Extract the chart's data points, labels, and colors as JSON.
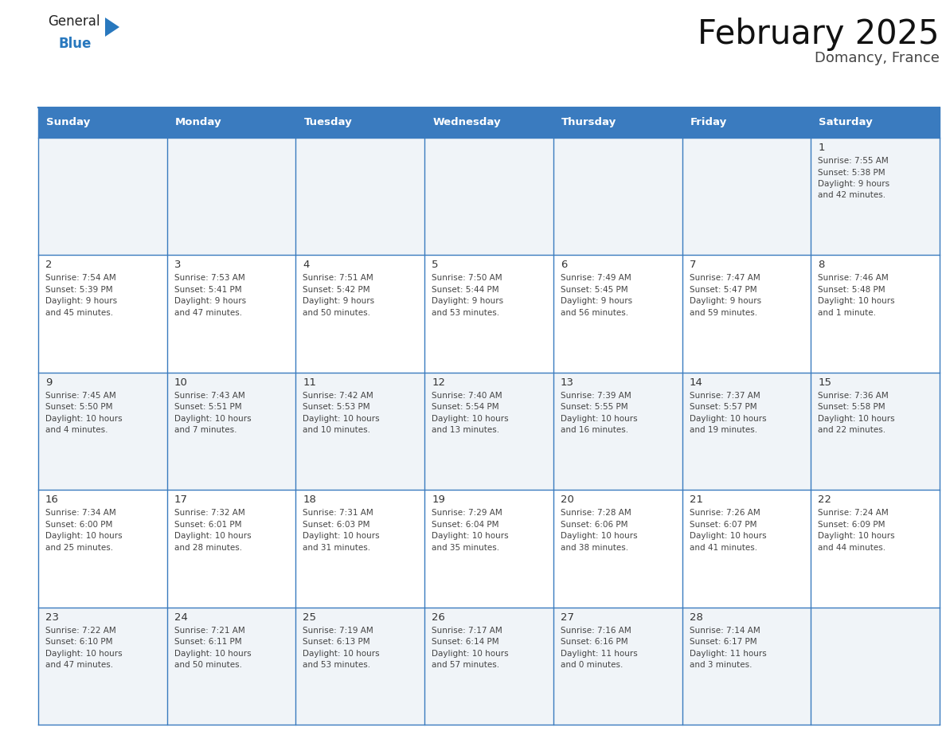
{
  "title": "February 2025",
  "subtitle": "Domancy, France",
  "days_of_week": [
    "Sunday",
    "Monday",
    "Tuesday",
    "Wednesday",
    "Thursday",
    "Friday",
    "Saturday"
  ],
  "header_bg": "#3a7bbf",
  "header_text_color": "#ffffff",
  "cell_bg_white": "#ffffff",
  "cell_bg_gray": "#f0f4f8",
  "border_color": "#3a7bbf",
  "grid_line_color": "#3a7bbf",
  "day_number_color": "#333333",
  "text_color": "#444444",
  "logo_general_color": "#222222",
  "logo_blue_color": "#2878be",
  "calendar_data": [
    [
      null,
      null,
      null,
      null,
      null,
      null,
      {
        "day": 1,
        "sunrise": "7:55 AM",
        "sunset": "5:38 PM",
        "daylight": "9 hours\nand 42 minutes."
      }
    ],
    [
      {
        "day": 2,
        "sunrise": "7:54 AM",
        "sunset": "5:39 PM",
        "daylight": "9 hours\nand 45 minutes."
      },
      {
        "day": 3,
        "sunrise": "7:53 AM",
        "sunset": "5:41 PM",
        "daylight": "9 hours\nand 47 minutes."
      },
      {
        "day": 4,
        "sunrise": "7:51 AM",
        "sunset": "5:42 PM",
        "daylight": "9 hours\nand 50 minutes."
      },
      {
        "day": 5,
        "sunrise": "7:50 AM",
        "sunset": "5:44 PM",
        "daylight": "9 hours\nand 53 minutes."
      },
      {
        "day": 6,
        "sunrise": "7:49 AM",
        "sunset": "5:45 PM",
        "daylight": "9 hours\nand 56 minutes."
      },
      {
        "day": 7,
        "sunrise": "7:47 AM",
        "sunset": "5:47 PM",
        "daylight": "9 hours\nand 59 minutes."
      },
      {
        "day": 8,
        "sunrise": "7:46 AM",
        "sunset": "5:48 PM",
        "daylight": "10 hours\nand 1 minute."
      }
    ],
    [
      {
        "day": 9,
        "sunrise": "7:45 AM",
        "sunset": "5:50 PM",
        "daylight": "10 hours\nand 4 minutes."
      },
      {
        "day": 10,
        "sunrise": "7:43 AM",
        "sunset": "5:51 PM",
        "daylight": "10 hours\nand 7 minutes."
      },
      {
        "day": 11,
        "sunrise": "7:42 AM",
        "sunset": "5:53 PM",
        "daylight": "10 hours\nand 10 minutes."
      },
      {
        "day": 12,
        "sunrise": "7:40 AM",
        "sunset": "5:54 PM",
        "daylight": "10 hours\nand 13 minutes."
      },
      {
        "day": 13,
        "sunrise": "7:39 AM",
        "sunset": "5:55 PM",
        "daylight": "10 hours\nand 16 minutes."
      },
      {
        "day": 14,
        "sunrise": "7:37 AM",
        "sunset": "5:57 PM",
        "daylight": "10 hours\nand 19 minutes."
      },
      {
        "day": 15,
        "sunrise": "7:36 AM",
        "sunset": "5:58 PM",
        "daylight": "10 hours\nand 22 minutes."
      }
    ],
    [
      {
        "day": 16,
        "sunrise": "7:34 AM",
        "sunset": "6:00 PM",
        "daylight": "10 hours\nand 25 minutes."
      },
      {
        "day": 17,
        "sunrise": "7:32 AM",
        "sunset": "6:01 PM",
        "daylight": "10 hours\nand 28 minutes."
      },
      {
        "day": 18,
        "sunrise": "7:31 AM",
        "sunset": "6:03 PM",
        "daylight": "10 hours\nand 31 minutes."
      },
      {
        "day": 19,
        "sunrise": "7:29 AM",
        "sunset": "6:04 PM",
        "daylight": "10 hours\nand 35 minutes."
      },
      {
        "day": 20,
        "sunrise": "7:28 AM",
        "sunset": "6:06 PM",
        "daylight": "10 hours\nand 38 minutes."
      },
      {
        "day": 21,
        "sunrise": "7:26 AM",
        "sunset": "6:07 PM",
        "daylight": "10 hours\nand 41 minutes."
      },
      {
        "day": 22,
        "sunrise": "7:24 AM",
        "sunset": "6:09 PM",
        "daylight": "10 hours\nand 44 minutes."
      }
    ],
    [
      {
        "day": 23,
        "sunrise": "7:22 AM",
        "sunset": "6:10 PM",
        "daylight": "10 hours\nand 47 minutes."
      },
      {
        "day": 24,
        "sunrise": "7:21 AM",
        "sunset": "6:11 PM",
        "daylight": "10 hours\nand 50 minutes."
      },
      {
        "day": 25,
        "sunrise": "7:19 AM",
        "sunset": "6:13 PM",
        "daylight": "10 hours\nand 53 minutes."
      },
      {
        "day": 26,
        "sunrise": "7:17 AM",
        "sunset": "6:14 PM",
        "daylight": "10 hours\nand 57 minutes."
      },
      {
        "day": 27,
        "sunrise": "7:16 AM",
        "sunset": "6:16 PM",
        "daylight": "11 hours\nand 0 minutes."
      },
      {
        "day": 28,
        "sunrise": "7:14 AM",
        "sunset": "6:17 PM",
        "daylight": "11 hours\nand 3 minutes."
      },
      null
    ]
  ],
  "fig_width": 11.88,
  "fig_height": 9.18,
  "dpi": 100
}
